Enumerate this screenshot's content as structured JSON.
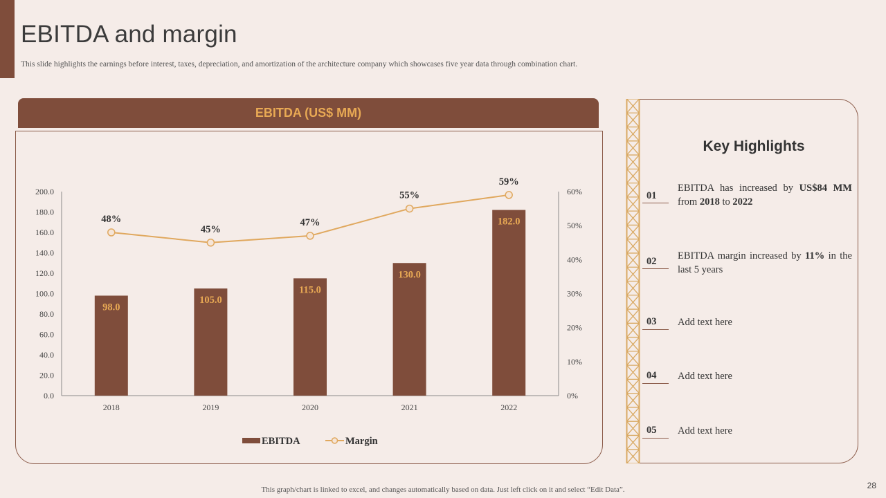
{
  "slide": {
    "title": "EBITDA and margin",
    "subtitle": "This slide highlights the earnings before interest, taxes, depreciation, and amortization of the architecture company which showcases five year data through combination chart.",
    "footer": "This graph/chart is linked to excel,  and changes automatically based on data. Just left click on it and select “Edit Data”.",
    "page_number": "28"
  },
  "chart_header": "EBITDA (US$ MM)",
  "chart_data": {
    "type": "bar",
    "title": "EBITDA (US$ MM)",
    "categories": [
      "2018",
      "2019",
      "2020",
      "2021",
      "2022"
    ],
    "series": [
      {
        "name": "EBITDA",
        "kind": "bar",
        "axis": "left",
        "values": [
          98.0,
          105.0,
          115.0,
          130.0,
          182.0
        ],
        "labels": [
          "98.0",
          "105.0",
          "115.0",
          "130.0",
          "182.0"
        ],
        "color": "#7f4d3b"
      },
      {
        "name": "Margin",
        "kind": "line",
        "axis": "right",
        "values": [
          48,
          45,
          47,
          55,
          59
        ],
        "labels": [
          "48%",
          "45%",
          "47%",
          "55%",
          "59%"
        ],
        "color": "#e0a85e"
      }
    ],
    "y_left": {
      "ylim": [
        0,
        200
      ],
      "ticks": [
        "0.0",
        "20.0",
        "40.0",
        "60.0",
        "80.0",
        "100.0",
        "120.0",
        "140.0",
        "160.0",
        "180.0",
        "200.0"
      ]
    },
    "y_right": {
      "ylim": [
        0,
        60
      ],
      "ticks": [
        "0%",
        "10%",
        "20%",
        "30%",
        "40%",
        "50%",
        "60%"
      ]
    },
    "legend": {
      "position": "bottom",
      "entries": [
        "EBITDA",
        "Margin"
      ]
    },
    "grid": false
  },
  "highlights": {
    "title": "Key Highlights",
    "items": [
      {
        "num": "01",
        "pre": "EBITDA has increased by ",
        "b1": "US$84 MM",
        "mid": " from ",
        "b2": "2018",
        "mid2": " to ",
        "b3": "2022"
      },
      {
        "num": "02",
        "pre": "EBITDA margin increased by ",
        "b1": "11%",
        "mid": " in the last ",
        "b2": "5",
        "mid2": " years",
        "b3": ""
      },
      {
        "num": "03",
        "text": "Add text  here"
      },
      {
        "num": "04",
        "text": "Add text  here"
      },
      {
        "num": "05",
        "text": "Add text  here"
      }
    ]
  },
  "colors": {
    "brand": "#7f4d3b",
    "accent": "#e8a954",
    "background": "#f5ece8"
  }
}
